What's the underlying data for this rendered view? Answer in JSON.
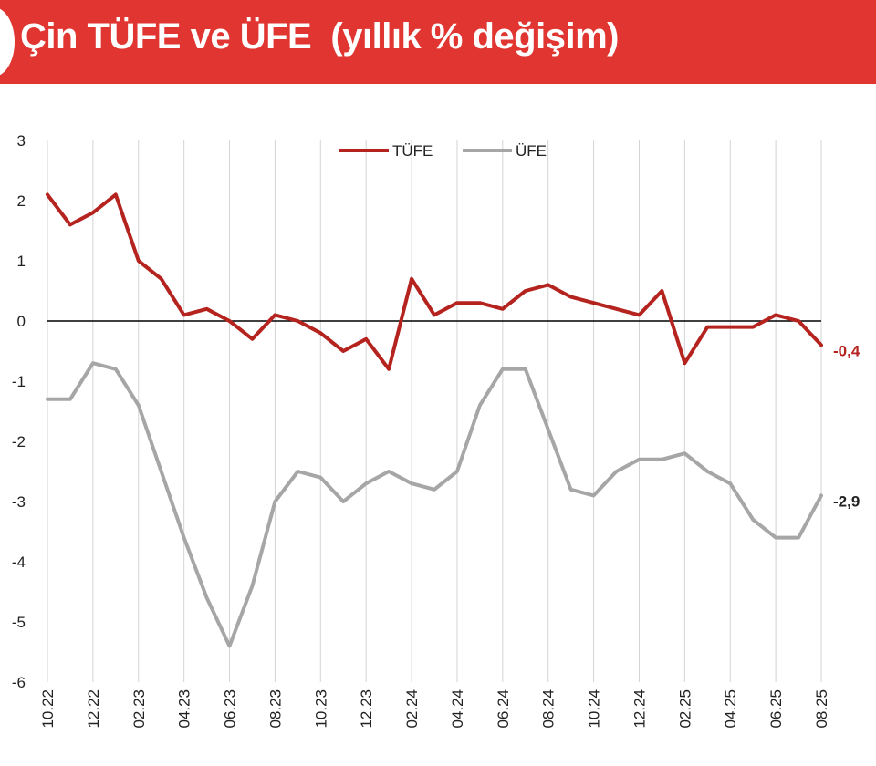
{
  "header": {
    "title": "Çin TÜFE ve ÜFE  (yıllık % değişim)"
  },
  "chart_data": {
    "type": "line",
    "title": "Çin TÜFE ve ÜFE  (yıllık % değişim)",
    "x": [
      "10.22",
      "11.22",
      "12.22",
      "01.23",
      "02.23",
      "03.23",
      "04.23",
      "05.23",
      "06.23",
      "07.23",
      "08.23",
      "09.23",
      "10.23",
      "11.23",
      "12.23",
      "01.24",
      "02.24",
      "03.24",
      "04.24",
      "05.24",
      "06.24",
      "07.24",
      "08.24",
      "09.24",
      "10.24",
      "11.24",
      "12.24",
      "01.25",
      "02.25",
      "03.25",
      "04.25",
      "05.25",
      "06.25",
      "07.25",
      "08.25"
    ],
    "x_tick_labels": [
      "10.22",
      "12.22",
      "02.23",
      "04.23",
      "06.23",
      "08.23",
      "10.23",
      "12.23",
      "02.24",
      "04.24",
      "06.24",
      "08.24",
      "10.24",
      "12.24",
      "02.25",
      "04.25",
      "06.25",
      "08.25"
    ],
    "ylim": [
      -6,
      3
    ],
    "y_ticks": [
      3,
      2,
      1,
      0,
      -1,
      -2,
      -3,
      -4,
      -5,
      -6
    ],
    "grid": "vertical",
    "legend_position": "top-center",
    "series": [
      {
        "name": "TÜFE",
        "color": "#b5231f",
        "values": [
          2.1,
          1.6,
          1.8,
          2.1,
          1.0,
          0.7,
          0.1,
          0.2,
          0.0,
          -0.3,
          0.1,
          0.0,
          -0.2,
          -0.5,
          -0.3,
          -0.8,
          0.7,
          0.1,
          0.3,
          0.3,
          0.2,
          0.5,
          0.6,
          0.4,
          0.3,
          0.2,
          0.1,
          0.5,
          -0.7,
          -0.1,
          -0.1,
          -0.1,
          0.1,
          0.0,
          -0.4
        ],
        "end_label": "-0,4"
      },
      {
        "name": "ÜFE",
        "color": "#a6a6a6",
        "values": [
          -1.3,
          -1.3,
          -0.7,
          -0.8,
          -1.4,
          -2.5,
          -3.6,
          -4.6,
          -5.4,
          -4.4,
          -3.0,
          -2.5,
          -2.6,
          -3.0,
          -2.7,
          -2.5,
          -2.7,
          -2.8,
          -2.5,
          -1.4,
          -0.8,
          -0.8,
          -1.8,
          -2.8,
          -2.9,
          -2.5,
          -2.3,
          -2.3,
          -2.2,
          -2.5,
          -2.7,
          -3.3,
          -3.6,
          -3.6,
          -2.9
        ],
        "end_label": "-2,9"
      }
    ]
  }
}
